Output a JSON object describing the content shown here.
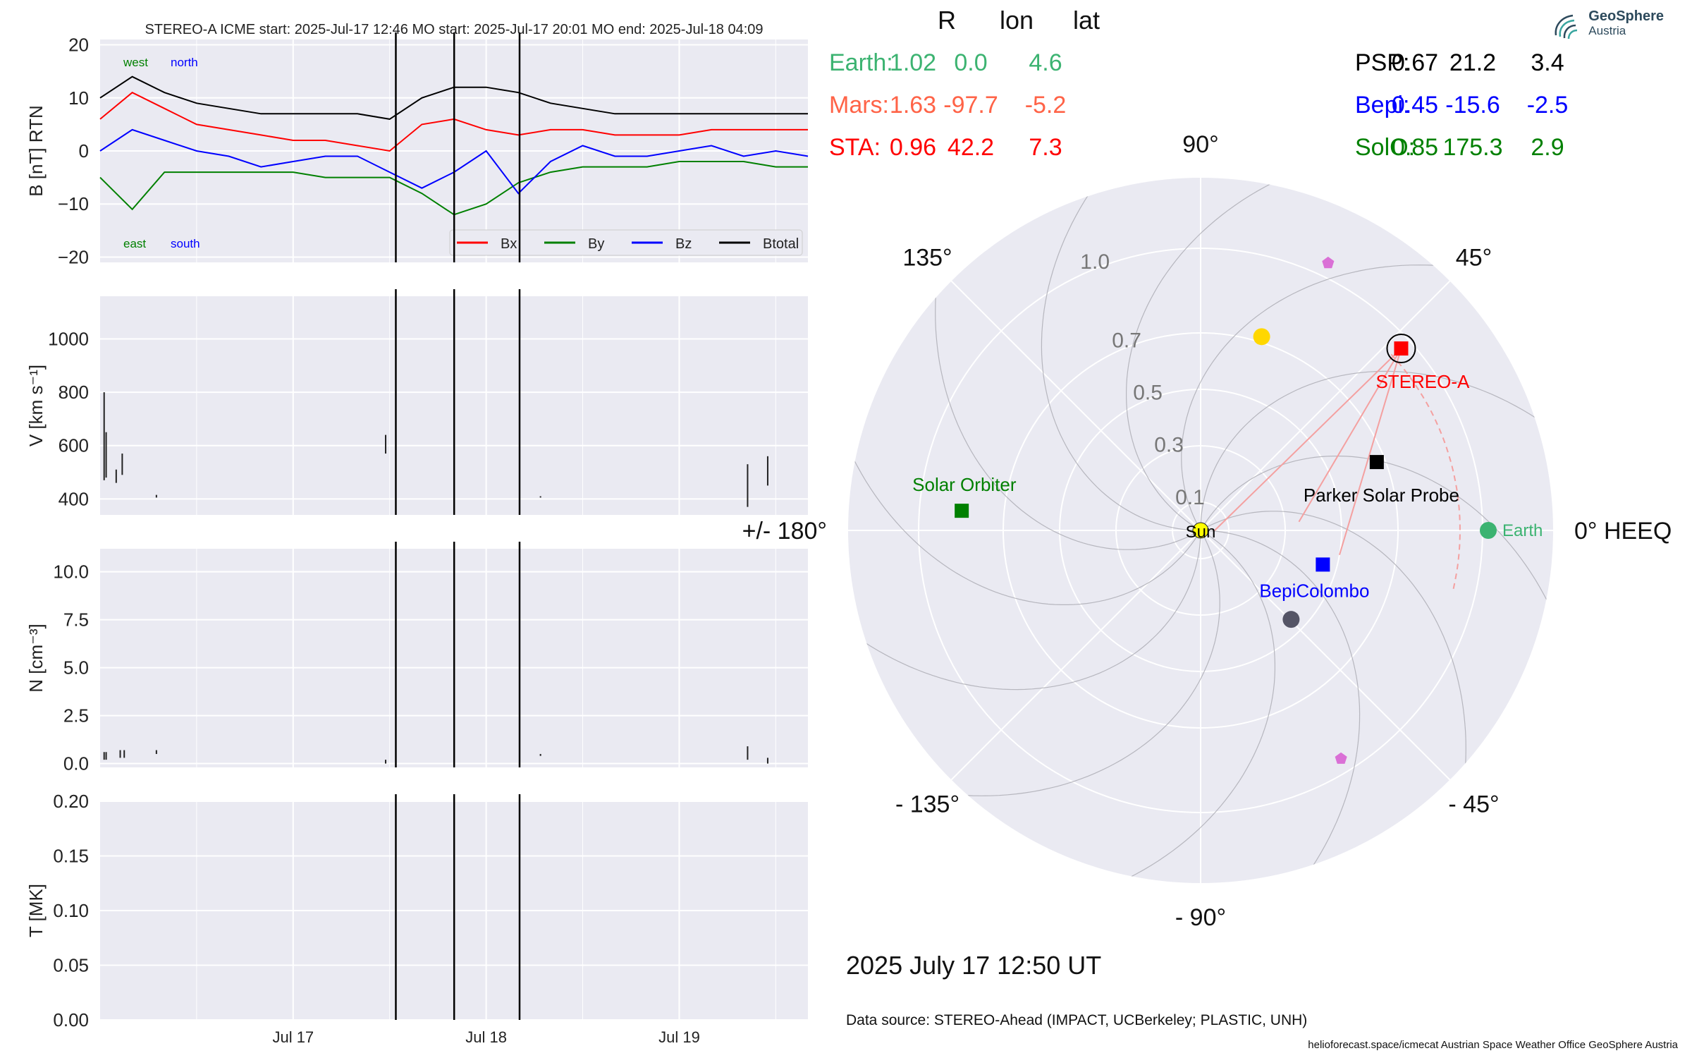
{
  "insitu": {
    "title": "STEREO-A    ICME start: 2025-Jul-17 12:46    MO start: 2025-Jul-17 20:01    MO end: 2025-Jul-18 04:09",
    "x_ticks": [
      "Jul 17",
      "Jul 18",
      "Jul 19"
    ],
    "panels": [
      {
        "ylabel": "B [nT] RTN",
        "ylim": [
          -21,
          21
        ],
        "yticks": [
          "20",
          "10",
          "0",
          "−10",
          "−20"
        ]
      },
      {
        "ylabel": "V [km s⁻¹]",
        "ylim": [
          340,
          1160
        ],
        "yticks": [
          "1000",
          "800",
          "600",
          "400"
        ]
      },
      {
        "ylabel": "N [cm⁻³]",
        "ylim": [
          -0.2,
          11.2
        ],
        "yticks": [
          "10.0",
          "7.5",
          "5.0",
          "2.5",
          "0.0"
        ]
      },
      {
        "ylabel": "T [MK]",
        "ylim": [
          0,
          0.2
        ],
        "yticks": [
          "0.20",
          "0.15",
          "0.10",
          "0.05",
          "0.00"
        ]
      }
    ],
    "b_annotations": {
      "west": "west",
      "north": "north",
      "east": "east",
      "south": "south"
    },
    "b_legend": [
      {
        "name": "Bx",
        "color": "#ff0000"
      },
      {
        "name": "By",
        "color": "#008000"
      },
      {
        "name": "Bz",
        "color": "#0000ff"
      },
      {
        "name": "Btotal",
        "color": "#000000"
      }
    ]
  },
  "chart_data": {
    "type": "line",
    "time_range": [
      "2025-07-16 00:00",
      "2025-07-19 16:00"
    ],
    "event_lines": [
      "2025-07-17 12:46",
      "2025-07-17 20:01",
      "2025-07-18 04:09"
    ],
    "magnetic_field": {
      "times": [
        "2025-07-16 00:00",
        "2025-07-16 04:00",
        "2025-07-16 08:00",
        "2025-07-16 12:00",
        "2025-07-16 16:00",
        "2025-07-16 20:00",
        "2025-07-17 00:00",
        "2025-07-17 04:00",
        "2025-07-17 08:00",
        "2025-07-17 12:00",
        "2025-07-17 16:00",
        "2025-07-17 20:00",
        "2025-07-18 00:00",
        "2025-07-18 04:00",
        "2025-07-18 08:00",
        "2025-07-18 12:00",
        "2025-07-18 16:00",
        "2025-07-18 20:00",
        "2025-07-19 00:00",
        "2025-07-19 04:00",
        "2025-07-19 08:00",
        "2025-07-19 12:00",
        "2025-07-19 16:00"
      ],
      "series": [
        {
          "name": "Bx",
          "values": [
            6,
            11,
            8,
            5,
            4,
            3,
            2,
            2,
            1,
            0,
            5,
            6,
            4,
            3,
            4,
            4,
            3,
            3,
            3,
            4,
            4,
            4,
            4
          ]
        },
        {
          "name": "By",
          "values": [
            -5,
            -11,
            -4,
            -4,
            -4,
            -4,
            -4,
            -5,
            -5,
            -5,
            -8,
            -12,
            -10,
            -6,
            -4,
            -3,
            -3,
            -3,
            -2,
            -2,
            -2,
            -3,
            -3
          ]
        },
        {
          "name": "Bz",
          "values": [
            0,
            4,
            2,
            0,
            -1,
            -3,
            -2,
            -1,
            -1,
            -4,
            -7,
            -4,
            0,
            -8,
            -2,
            1,
            -1,
            -1,
            0,
            1,
            -1,
            0,
            -1
          ]
        },
        {
          "name": "Btotal",
          "values": [
            10,
            14,
            11,
            9,
            8,
            7,
            7,
            7,
            7,
            6,
            10,
            12,
            12,
            11,
            9,
            8,
            7,
            7,
            7,
            7,
            7,
            7,
            7
          ]
        }
      ]
    },
    "speed": {
      "spikes": [
        {
          "t": "2025-07-16 00:30",
          "v": [
            470,
            800
          ]
        },
        {
          "t": "2025-07-16 00:45",
          "v": [
            480,
            650
          ]
        },
        {
          "t": "2025-07-16 02:00",
          "v": [
            460,
            510
          ]
        },
        {
          "t": "2025-07-16 02:45",
          "v": [
            490,
            570
          ]
        },
        {
          "t": "2025-07-16 07:00",
          "v": [
            405,
            415
          ]
        },
        {
          "t": "2025-07-17 11:30",
          "v": [
            570,
            640
          ]
        },
        {
          "t": "2025-07-18 06:45",
          "v": [
            405,
            410
          ]
        },
        {
          "t": "2025-07-19 08:30",
          "v": [
            370,
            530
          ]
        },
        {
          "t": "2025-07-19 11:00",
          "v": [
            450,
            560
          ]
        }
      ]
    },
    "density": {
      "spikes": [
        {
          "t": "2025-07-16 00:30",
          "v": [
            0.2,
            0.6
          ]
        },
        {
          "t": "2025-07-16 00:45",
          "v": [
            0.2,
            0.6
          ]
        },
        {
          "t": "2025-07-16 02:30",
          "v": [
            0.3,
            0.7
          ]
        },
        {
          "t": "2025-07-16 03:00",
          "v": [
            0.3,
            0.7
          ]
        },
        {
          "t": "2025-07-16 07:00",
          "v": [
            0.5,
            0.7
          ]
        },
        {
          "t": "2025-07-17 11:30",
          "v": [
            0.0,
            0.2
          ]
        },
        {
          "t": "2025-07-18 06:45",
          "v": [
            0.4,
            0.5
          ]
        },
        {
          "t": "2025-07-19 08:30",
          "v": [
            0.2,
            0.9
          ]
        },
        {
          "t": "2025-07-19 11:00",
          "v": [
            0.0,
            0.3
          ]
        }
      ]
    },
    "temperature": {
      "spikes": []
    },
    "positions": {
      "columns": [
        "R",
        "lon",
        "lat"
      ],
      "rows": [
        {
          "name": "Earth:",
          "R": "1.02",
          "lon": "0.0",
          "lat": "4.6",
          "color": "#3cb371"
        },
        {
          "name": "Mars:",
          "R": "1.63",
          "lon": "-97.7",
          "lat": "-5.2",
          "color": "#ff6347"
        },
        {
          "name": "STA:",
          "R": "0.96",
          "lon": "42.2",
          "lat": "7.3",
          "color": "#ff0000"
        },
        {
          "name": "PSP:",
          "R": "0.67",
          "lon": "21.2",
          "lat": "3.4",
          "color": "#000000"
        },
        {
          "name": "Bepi:",
          "R": "0.45",
          "lon": "-15.6",
          "lat": "-2.5",
          "color": "#0000ff"
        },
        {
          "name": "SolO:",
          "R": "0.85",
          "lon": "175.3",
          "lat": "2.9",
          "color": "#008000"
        }
      ]
    },
    "polar": {
      "type": "scatter",
      "r_ticks": [
        "0.1",
        "0.3",
        "0.5",
        "0.7",
        "1.0"
      ],
      "r_max": 1.25,
      "angle_labels": {
        "0": "0° HEEQ",
        "45": "45°",
        "90": "90°",
        "135": "135°",
        "180": "+/- 180°",
        "-135": "- 135°",
        "-90": "- 90°",
        "-45": "- 45°"
      },
      "bodies": [
        {
          "name": "Sun",
          "label": "Sun",
          "r": 0.0,
          "lon": 0.0,
          "marker": "circle",
          "color": "#ffff00"
        },
        {
          "name": "Earth",
          "label": "Earth",
          "r": 1.02,
          "lon": 0.0,
          "marker": "circle",
          "color": "#3cb371"
        },
        {
          "name": "STEREO-A",
          "label": "STEREO-A",
          "r": 0.96,
          "lon": 42.2,
          "marker": "square",
          "color": "#ff0000"
        },
        {
          "name": "Parker Solar Probe",
          "label": "Parker Solar Probe",
          "r": 0.67,
          "lon": 21.2,
          "marker": "square",
          "color": "#000000"
        },
        {
          "name": "BepiColombo",
          "label": "BepiColombo",
          "r": 0.45,
          "lon": -15.6,
          "marker": "square",
          "color": "#0000ff"
        },
        {
          "name": "Solar Orbiter",
          "label": "Solar Orbiter",
          "r": 0.85,
          "lon": 175.3,
          "marker": "square",
          "color": "#008000"
        },
        {
          "name": "Mercury",
          "label": "",
          "r": 0.45,
          "lon": -44.5,
          "marker": "circle",
          "color": "#555566"
        },
        {
          "name": "Venus",
          "label": "",
          "r": 0.72,
          "lon": 72.5,
          "marker": "circle",
          "color": "#ffd700"
        },
        {
          "name": "Mars",
          "label": "",
          "r": 1.63,
          "lon": -97.7,
          "marker": "circle",
          "color": "#ff6347"
        },
        {
          "name": "comet-1",
          "label": "",
          "r": 1.05,
          "lon": 64.5,
          "marker": "pentagon",
          "color": "#da70d6"
        },
        {
          "name": "comet-2",
          "label": "",
          "r": 0.95,
          "lon": -58.4,
          "marker": "pentagon",
          "color": "#da70d6"
        }
      ],
      "icme_front": {
        "apex_lon": 15,
        "half_width": 28,
        "r": 0.92
      }
    }
  },
  "footer": {
    "date": "2025 July 17  12:50 UT",
    "source": "Data source: STEREO-Ahead (IMPACT, UCBerkeley; PLASTIC, UNH)",
    "credits": "helioforecast.space/icmecat   Austrian Space Weather Office   GeoSphere Austria"
  },
  "logo": {
    "name": "GeoSphere",
    "sub": "Austria"
  },
  "colors": {
    "panel_bg": "#eaeaf2",
    "grid": "#ffffff",
    "earth": "#3cb371",
    "sta": "#ff0000",
    "icme": "#f4a0a0"
  }
}
